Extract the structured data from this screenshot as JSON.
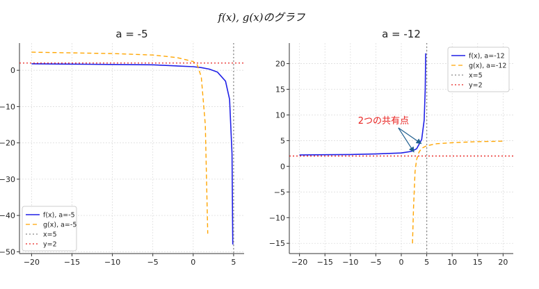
{
  "figure_title": "f(x), g(x)のグラフ",
  "colors": {
    "f": "#1f1fe6",
    "g": "#ffa500",
    "vline": "#888888",
    "hline": "#e8201e",
    "grid": "#dddddd",
    "annotation": "#e8201e",
    "arrow": "#1f5f8f"
  },
  "chart_data": [
    {
      "type": "line",
      "title": "a = -5",
      "xlabel": "",
      "ylabel": "",
      "xlim": [
        -21.5,
        6.3
      ],
      "ylim": [
        -50.5,
        7.5
      ],
      "xticks": [
        -20,
        -15,
        -10,
        -5,
        0,
        5
      ],
      "xtick_labels": [
        "−20",
        "−15",
        "−10",
        "−5",
        "0",
        "5"
      ],
      "yticks": [
        -50,
        -40,
        -30,
        -20,
        -10,
        0
      ],
      "ytick_labels": [
        "−50",
        "−40",
        "−30",
        "−20",
        "−10",
        "0"
      ],
      "grid": true,
      "legend_position": "lower-left",
      "series": [
        {
          "name": "f(x), a=-5",
          "style": "solid",
          "color": "#1f1fe6",
          "x": [
            -20,
            -15,
            -10,
            -5,
            0,
            1,
            2,
            3,
            4,
            4.5,
            4.8,
            4.9
          ],
          "y": [
            1.8,
            1.7,
            1.6,
            1.5,
            1.0,
            0.75,
            0.33,
            -0.5,
            -3,
            -8,
            -23,
            -48
          ]
        },
        {
          "name": "g(x), a=-5",
          "style": "dashed",
          "color": "#ffa500",
          "x": [
            -20,
            -15,
            -10,
            -5,
            -2,
            0,
            0.5,
            1,
            1.5,
            1.8
          ],
          "y": [
            5.0,
            4.8,
            4.6,
            4.2,
            3.5,
            2.4,
            1.5,
            -1.8,
            -15,
            -45
          ]
        },
        {
          "name": "x=5",
          "style": "dotted",
          "color": "#888888",
          "vertical": 5
        },
        {
          "name": "y=2",
          "style": "dotted",
          "color": "#e8201e",
          "horizontal": 2
        }
      ]
    },
    {
      "type": "line",
      "title": "a = -12",
      "xlabel": "",
      "ylabel": "",
      "xlim": [
        -22,
        22
      ],
      "ylim": [
        -17,
        24
      ],
      "xticks": [
        -20,
        -15,
        -10,
        -5,
        0,
        5,
        10,
        15,
        20
      ],
      "xtick_labels": [
        "−20",
        "−15",
        "−10",
        "−5",
        "0",
        "5",
        "10",
        "15",
        "20"
      ],
      "yticks": [
        -15,
        -10,
        -5,
        0,
        5,
        10,
        15,
        20
      ],
      "ytick_labels": [
        "−15",
        "−10",
        "−5",
        "0",
        "5",
        "10",
        "15",
        "20"
      ],
      "grid": true,
      "legend_position": "top-right",
      "annotation": {
        "text": "2つの共有点",
        "text_x": -8.5,
        "text_y": 8.3,
        "targets": [
          [
            2.4,
            2.9
          ],
          [
            3.8,
            4.5
          ]
        ]
      },
      "series": [
        {
          "name": "f(x), a=-12",
          "style": "solid",
          "color": "#1f1fe6",
          "x": [
            -20,
            -15,
            -10,
            -5,
            0,
            2,
            3,
            4,
            4.5,
            4.7,
            4.8
          ],
          "y": [
            2.2,
            2.25,
            2.3,
            2.4,
            2.6,
            2.9,
            3.4,
            5.2,
            9,
            15,
            22
          ]
        },
        {
          "name": "g(x), a=-12",
          "style": "dashed",
          "color": "#ffa500",
          "x": [
            2.2,
            2.4,
            2.7,
            3.0,
            3.5,
            4.0,
            5,
            7,
            10,
            15,
            20
          ],
          "y": [
            -15,
            -8,
            -1,
            1.3,
            2.8,
            3.5,
            4.0,
            4.4,
            4.6,
            4.8,
            4.9
          ]
        },
        {
          "name": "x=5",
          "style": "dotted",
          "color": "#888888",
          "vertical": 5
        },
        {
          "name": "y=2",
          "style": "dotted",
          "color": "#e8201e",
          "horizontal": 2
        }
      ]
    }
  ]
}
